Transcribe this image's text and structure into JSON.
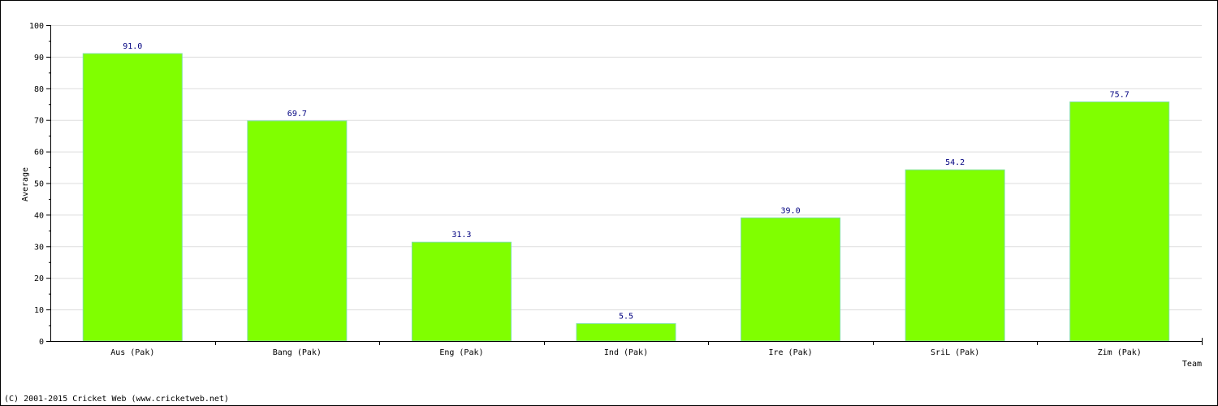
{
  "footer": "(C) 2001-2015 Cricket Web (www.cricketweb.net)",
  "chart_data": {
    "type": "bar",
    "title": "",
    "xlabel": "Team",
    "ylabel": "Average",
    "categories": [
      "Aus (Pak)",
      "Bang (Pak)",
      "Eng (Pak)",
      "Ind (Pak)",
      "Ire (Pak)",
      "SriL (Pak)",
      "Zim (Pak)"
    ],
    "values": [
      91.0,
      69.7,
      31.3,
      5.5,
      39.0,
      54.2,
      75.7
    ],
    "data_labels": [
      "91.0",
      "69.7",
      "31.3",
      "5.5",
      "39.0",
      "54.2",
      "75.7"
    ],
    "ylim": [
      0,
      100
    ],
    "yticks": [
      0,
      10,
      20,
      30,
      40,
      50,
      60,
      70,
      80,
      90,
      100
    ],
    "grid": true,
    "colors": {
      "bar_fill": "#80ff00",
      "bar_border": "#7fe0a0",
      "grid": "#dddddd",
      "axis": "#000000",
      "data_label": "#000080"
    }
  }
}
